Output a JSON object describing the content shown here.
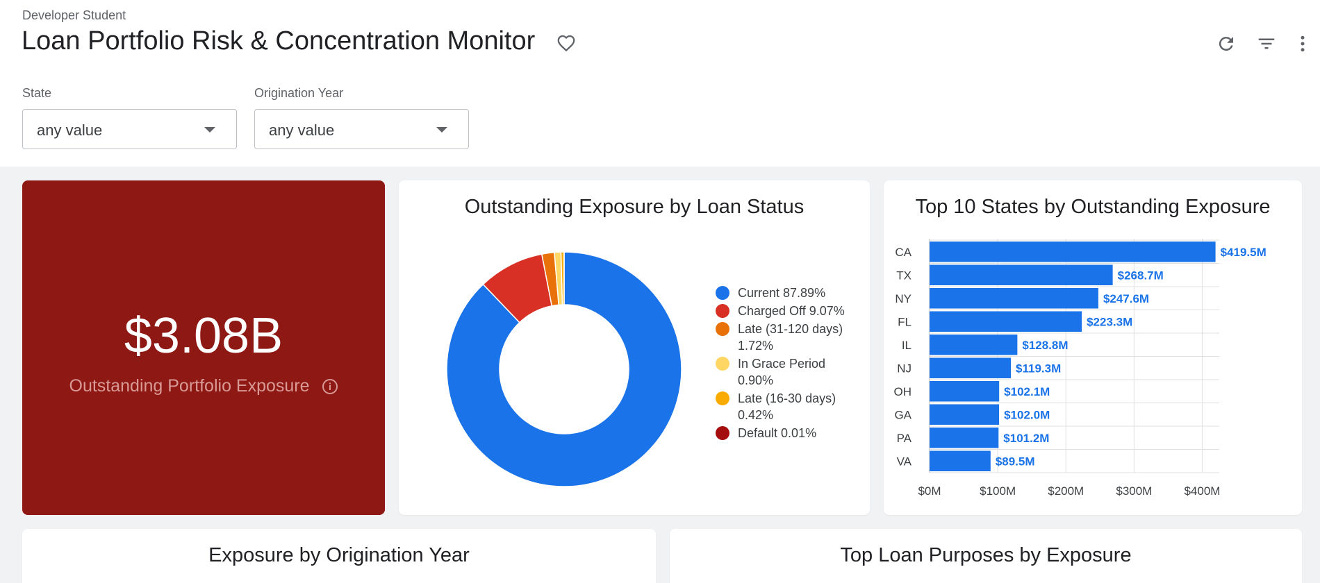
{
  "header": {
    "owner": "Developer Student",
    "title": "Loan Portfolio Risk & Concentration Monitor",
    "icons": [
      "heart-icon",
      "refresh-icon",
      "filter-icon",
      "more-vert-icon"
    ]
  },
  "filters": [
    {
      "label": "State",
      "value": "any value"
    },
    {
      "label": "Origination Year",
      "value": "any value"
    }
  ],
  "kpi": {
    "value": "$3.08B",
    "label": "Outstanding Portfolio Exposure",
    "color": "#8e1814"
  },
  "donut": {
    "title": "Outstanding Exposure by Loan Status",
    "legend": [
      {
        "label": "Current 87.89%",
        "color": "#1a73e8"
      },
      {
        "label": "Charged Off 9.07%",
        "color": "#d93025"
      },
      {
        "label": "Late (31-120 days) 1.72%",
        "color": "#e8710a"
      },
      {
        "label": "In Grace Period 0.90%",
        "color": "#fdd663"
      },
      {
        "label": "Late (16-30 days) 0.42%",
        "color": "#f9ab00"
      },
      {
        "label": "Default 0.01%",
        "color": "#a50e0e"
      }
    ]
  },
  "bars": {
    "title": "Top 10 States by Outstanding Exposure",
    "color": "#1a73e8"
  },
  "bottom_cards": [
    {
      "title": "Exposure by Origination Year"
    },
    {
      "title": "Top Loan Purposes by Exposure"
    }
  ],
  "chart_data": [
    {
      "type": "pie",
      "title": "Outstanding Exposure by Loan Status",
      "categories": [
        "Current",
        "Charged Off",
        "Late (31-120 days)",
        "In Grace Period",
        "Late (16-30 days)",
        "Default"
      ],
      "values": [
        87.89,
        9.07,
        1.72,
        0.9,
        0.42,
        0.01
      ],
      "colors": [
        "#1a73e8",
        "#d93025",
        "#e8710a",
        "#fdd663",
        "#f9ab00",
        "#a50e0e"
      ],
      "donut": true,
      "legend": "right"
    },
    {
      "type": "bar",
      "orientation": "horizontal",
      "title": "Top 10 States by Outstanding Exposure",
      "categories": [
        "CA",
        "TX",
        "NY",
        "FL",
        "IL",
        "NJ",
        "OH",
        "GA",
        "PA",
        "VA"
      ],
      "values": [
        419.5,
        268.7,
        247.6,
        223.3,
        128.8,
        119.3,
        102.1,
        102.0,
        101.2,
        89.5
      ],
      "data_labels": [
        "$419.5M",
        "$268.7M",
        "$247.6M",
        "$223.3M",
        "$128.8M",
        "$119.3M",
        "$102.1M",
        "$102.0M",
        "$101.2M",
        "$89.5M"
      ],
      "xticks": [
        "$0M",
        "$100M",
        "$200M",
        "$300M",
        "$400M"
      ],
      "xlim": [
        0,
        425
      ],
      "grid": true
    }
  ]
}
